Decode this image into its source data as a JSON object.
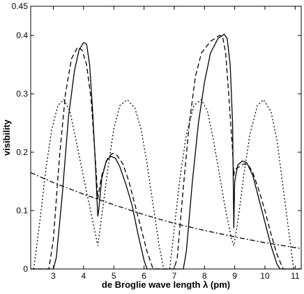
{
  "chart_data": {
    "type": "line",
    "title": "",
    "xlabel": "de Broglie wave length λ (pm)",
    "ylabel": "visibility",
    "xlim": [
      2.25,
      11.2
    ],
    "ylim": [
      0,
      0.45
    ],
    "xticks": [
      3,
      4,
      5,
      6,
      7,
      8,
      9,
      10,
      11
    ],
    "yticks": [
      0,
      0.1,
      0.2,
      0.3,
      0.4,
      0.45
    ],
    "ytick_labels": [
      "0",
      "0.1",
      "0.2",
      "0.3",
      "0.4",
      "0.45"
    ],
    "grid": false,
    "legend": "none",
    "series": [
      {
        "style": "solid",
        "color": "#000000",
        "points": [
          [
            2.25,
            0
          ],
          [
            3.0,
            0
          ],
          [
            3.1,
            0.02
          ],
          [
            3.3,
            0.13
          ],
          [
            3.5,
            0.26
          ],
          [
            3.7,
            0.34
          ],
          [
            3.85,
            0.375
          ],
          [
            4.0,
            0.388
          ],
          [
            4.1,
            0.385
          ],
          [
            4.2,
            0.35
          ],
          [
            4.3,
            0.27
          ],
          [
            4.4,
            0.17
          ],
          [
            4.47,
            0.09
          ],
          [
            4.5,
            0.1
          ],
          [
            4.6,
            0.155
          ],
          [
            4.75,
            0.185
          ],
          [
            4.9,
            0.193
          ],
          [
            5.05,
            0.19
          ],
          [
            5.2,
            0.175
          ],
          [
            5.4,
            0.145
          ],
          [
            5.6,
            0.11
          ],
          [
            5.8,
            0.06
          ],
          [
            6.0,
            0.015
          ],
          [
            6.1,
            0
          ],
          [
            7.3,
            0
          ],
          [
            7.4,
            0.03
          ],
          [
            7.6,
            0.15
          ],
          [
            7.8,
            0.25
          ],
          [
            8.0,
            0.32
          ],
          [
            8.2,
            0.37
          ],
          [
            8.45,
            0.395
          ],
          [
            8.65,
            0.402
          ],
          [
            8.75,
            0.395
          ],
          [
            8.85,
            0.35
          ],
          [
            8.93,
            0.25
          ],
          [
            8.97,
            0.07
          ],
          [
            9.0,
            0.15
          ],
          [
            9.1,
            0.178
          ],
          [
            9.25,
            0.185
          ],
          [
            9.4,
            0.182
          ],
          [
            9.6,
            0.16
          ],
          [
            9.8,
            0.12
          ],
          [
            10.0,
            0.08
          ],
          [
            10.2,
            0.04
          ],
          [
            10.4,
            0.008
          ],
          [
            10.5,
            0
          ],
          [
            11.2,
            0
          ]
        ]
      },
      {
        "style": "dashed",
        "color": "#000000",
        "points": [
          [
            2.25,
            0
          ],
          [
            2.85,
            0
          ],
          [
            3.0,
            0.05
          ],
          [
            3.2,
            0.19
          ],
          [
            3.4,
            0.3
          ],
          [
            3.6,
            0.36
          ],
          [
            3.8,
            0.38
          ],
          [
            3.95,
            0.375
          ],
          [
            4.1,
            0.35
          ],
          [
            4.25,
            0.29
          ],
          [
            4.4,
            0.18
          ],
          [
            4.47,
            0.12
          ],
          [
            4.5,
            0.13
          ],
          [
            4.6,
            0.16
          ],
          [
            4.8,
            0.19
          ],
          [
            4.95,
            0.198
          ],
          [
            5.1,
            0.195
          ],
          [
            5.3,
            0.18
          ],
          [
            5.5,
            0.15
          ],
          [
            5.7,
            0.11
          ],
          [
            5.9,
            0.07
          ],
          [
            6.1,
            0.03
          ],
          [
            6.3,
            0
          ],
          [
            7.0,
            0
          ],
          [
            7.1,
            0.02
          ],
          [
            7.3,
            0.14
          ],
          [
            7.5,
            0.25
          ],
          [
            7.7,
            0.33
          ],
          [
            7.9,
            0.37
          ],
          [
            8.2,
            0.39
          ],
          [
            8.5,
            0.4
          ],
          [
            8.6,
            0.398
          ],
          [
            8.7,
            0.37
          ],
          [
            8.8,
            0.3
          ],
          [
            8.92,
            0.21
          ],
          [
            8.97,
            0.16
          ],
          [
            9.0,
            0.17
          ],
          [
            9.15,
            0.175
          ],
          [
            9.3,
            0.18
          ],
          [
            9.45,
            0.178
          ],
          [
            9.6,
            0.165
          ],
          [
            9.8,
            0.135
          ],
          [
            10.0,
            0.1
          ],
          [
            10.2,
            0.06
          ],
          [
            10.4,
            0.025
          ],
          [
            10.6,
            0
          ],
          [
            11.2,
            0
          ]
        ]
      },
      {
        "style": "dotted",
        "color": "#000000",
        "points": [
          [
            2.35,
            0
          ],
          [
            2.55,
            0.08
          ],
          [
            2.75,
            0.17
          ],
          [
            2.95,
            0.24
          ],
          [
            3.15,
            0.28
          ],
          [
            3.35,
            0.29
          ],
          [
            3.55,
            0.27
          ],
          [
            3.75,
            0.22
          ],
          [
            3.95,
            0.17
          ],
          [
            4.15,
            0.12
          ],
          [
            4.35,
            0.07
          ],
          [
            4.47,
            0.04
          ],
          [
            4.6,
            0.09
          ],
          [
            4.8,
            0.17
          ],
          [
            5.0,
            0.24
          ],
          [
            5.2,
            0.28
          ],
          [
            5.45,
            0.29
          ],
          [
            5.7,
            0.275
          ],
          [
            5.9,
            0.24
          ],
          [
            6.1,
            0.18
          ],
          [
            6.3,
            0.11
          ],
          [
            6.5,
            0.04
          ],
          [
            6.65,
            0
          ],
          [
            6.85,
            0
          ],
          [
            7.0,
            0.07
          ],
          [
            7.2,
            0.16
          ],
          [
            7.4,
            0.23
          ],
          [
            7.65,
            0.28
          ],
          [
            7.9,
            0.29
          ],
          [
            8.1,
            0.27
          ],
          [
            8.3,
            0.22
          ],
          [
            8.5,
            0.16
          ],
          [
            8.7,
            0.1
          ],
          [
            8.9,
            0.05
          ],
          [
            8.97,
            0.04
          ],
          [
            9.1,
            0.08
          ],
          [
            9.3,
            0.16
          ],
          [
            9.5,
            0.23
          ],
          [
            9.75,
            0.28
          ],
          [
            9.95,
            0.29
          ],
          [
            10.2,
            0.27
          ],
          [
            10.4,
            0.22
          ],
          [
            10.6,
            0.14
          ],
          [
            10.8,
            0.06
          ],
          [
            10.95,
            0
          ]
        ]
      },
      {
        "style": "dashdot",
        "color": "#000000",
        "points": [
          [
            2.25,
            0.165
          ],
          [
            3.0,
            0.148
          ],
          [
            4.0,
            0.128
          ],
          [
            5.0,
            0.11
          ],
          [
            6.0,
            0.093
          ],
          [
            7.0,
            0.078
          ],
          [
            8.0,
            0.066
          ],
          [
            9.0,
            0.055
          ],
          [
            10.0,
            0.045
          ],
          [
            11.2,
            0.035
          ]
        ]
      }
    ]
  }
}
